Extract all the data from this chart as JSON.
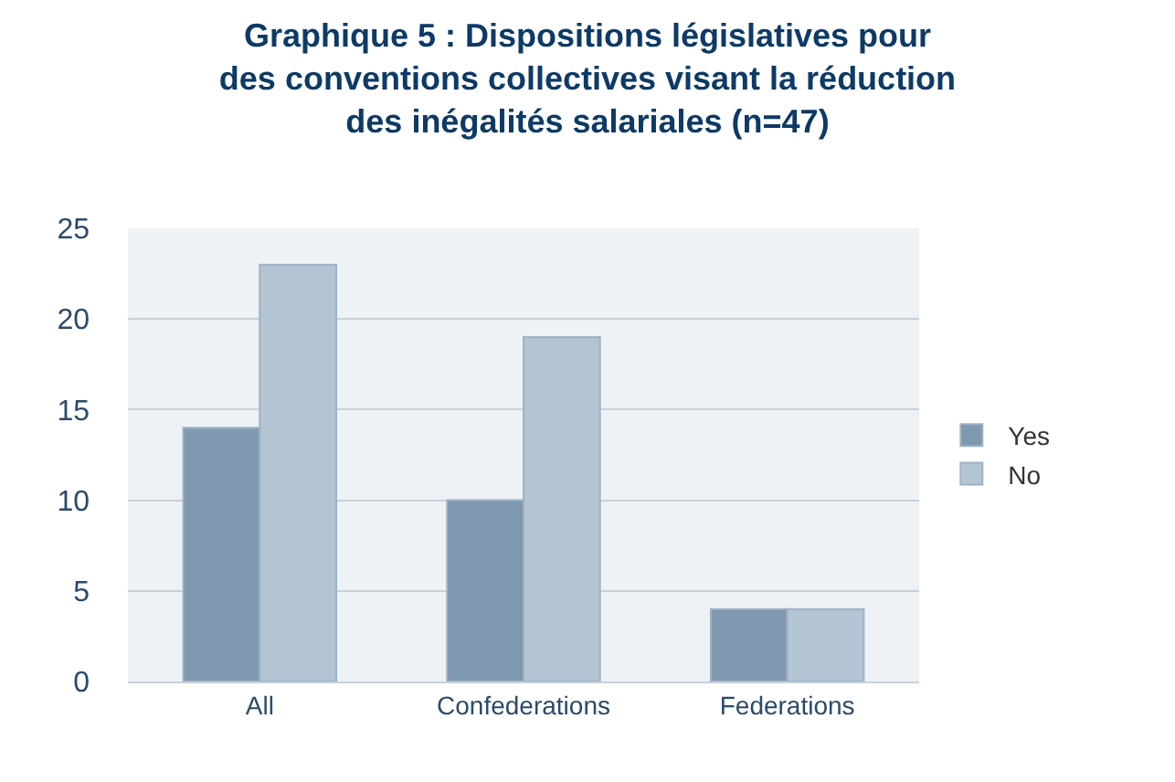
{
  "chart_data": {
    "type": "bar",
    "title": "Graphique 5 : Dispositions législatives pour\ndes conventions collectives visant la réduction\ndes inégalités salariales (n=47)",
    "categories": [
      "All",
      "Confederations",
      "Federations"
    ],
    "series": [
      {
        "name": "Yes",
        "color": "#7f99b0",
        "values": [
          14,
          10,
          4
        ]
      },
      {
        "name": "No",
        "color": "#b3c4d3",
        "values": [
          23,
          19,
          4
        ]
      }
    ],
    "ylim": [
      0,
      25
    ],
    "yticks": [
      0,
      5,
      10,
      15,
      20,
      25
    ],
    "grid": "y",
    "legend": "right"
  }
}
